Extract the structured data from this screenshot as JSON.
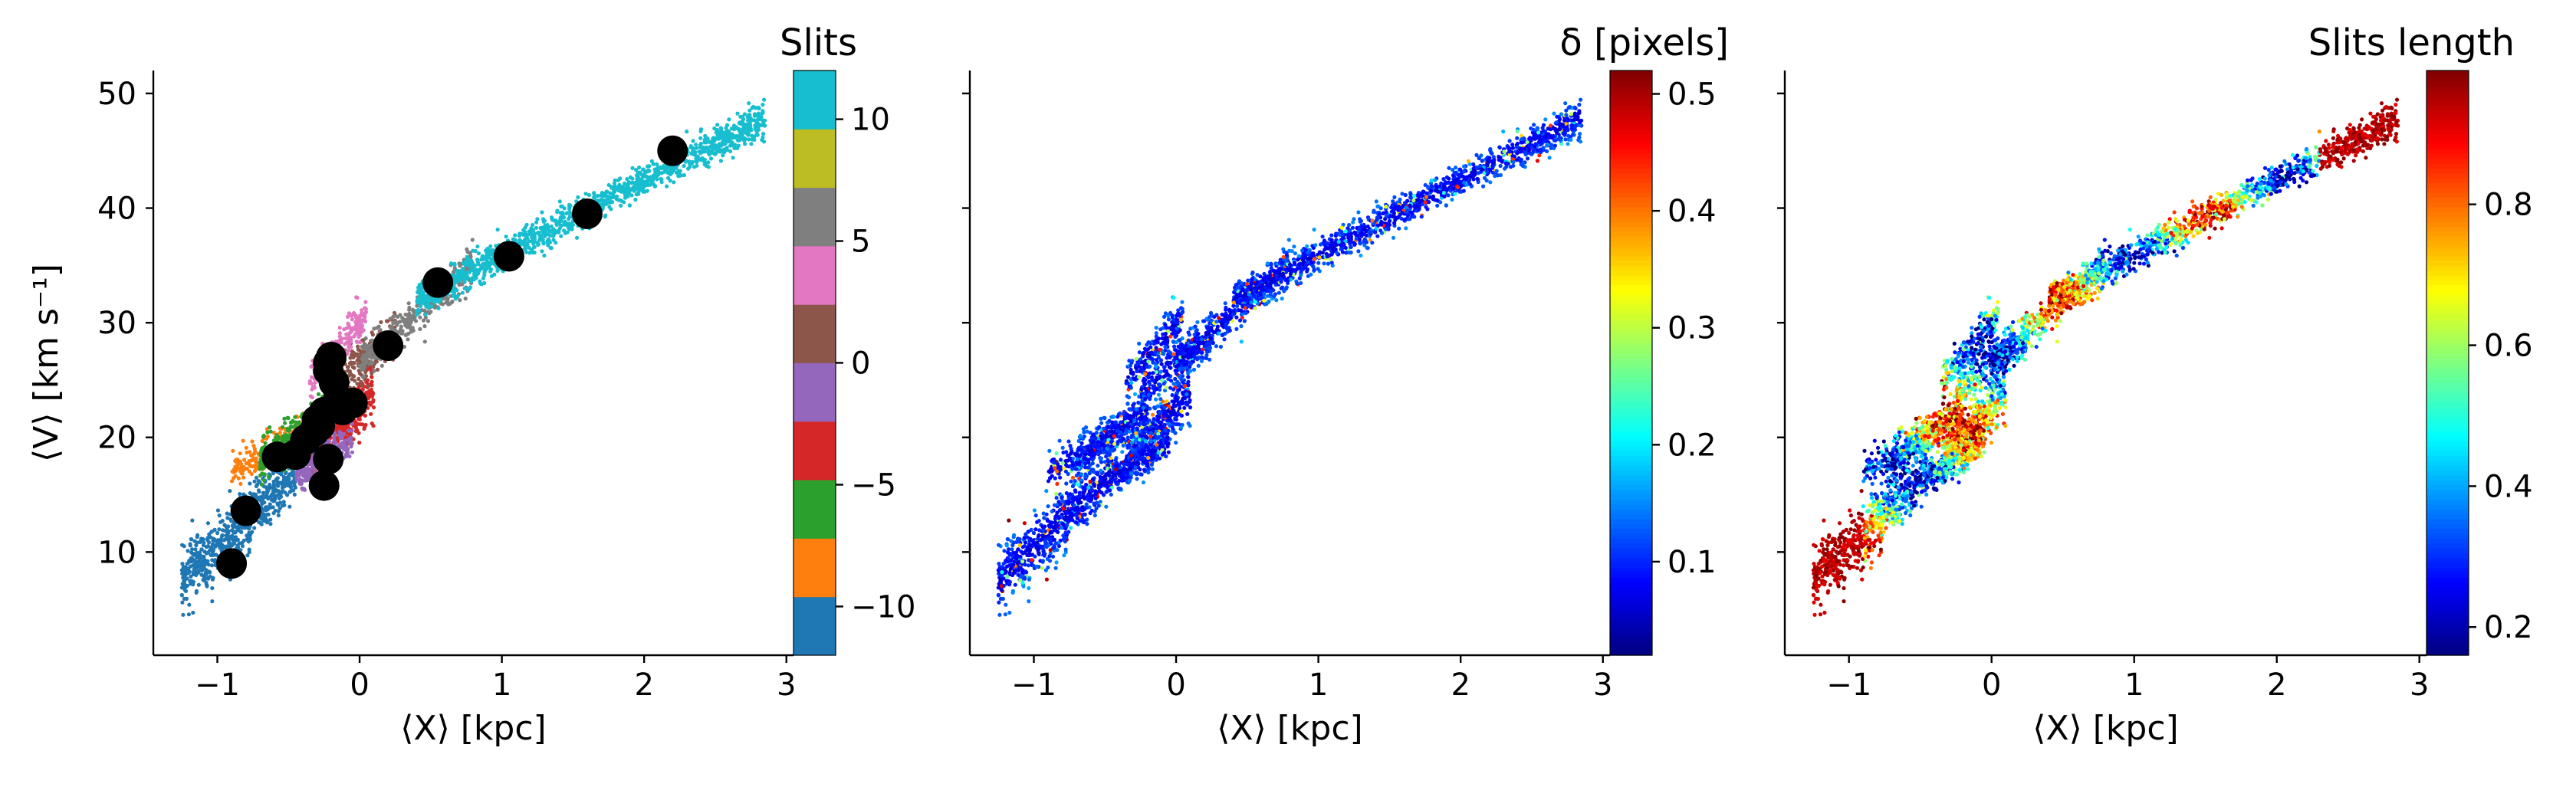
{
  "chart_data": [
    {
      "type": "scatter",
      "xlabel": "⟨X⟩ [kpc]",
      "ylabel": "⟨V⟩ [km s⁻¹]",
      "xlim": [
        -1.45,
        3.05
      ],
      "ylim": [
        1,
        52
      ],
      "xticks": [
        -1,
        0,
        1,
        2,
        3
      ],
      "xtick_labels": [
        "−1",
        "0",
        "1",
        "2",
        "3"
      ],
      "yticks": [
        10,
        20,
        30,
        40,
        50
      ],
      "ytick_labels": [
        "10",
        "20",
        "30",
        "40",
        "50"
      ],
      "colorbar": {
        "title": "Slits",
        "type": "discrete",
        "range": [
          -12,
          12
        ],
        "ticks": [
          -10,
          -5,
          0,
          5,
          10
        ],
        "tick_labels": [
          "−10",
          "−5",
          "0",
          "5",
          "10"
        ],
        "colors": [
          "#1f77b4",
          "#ff7f0e",
          "#2ca02c",
          "#d62728",
          "#9467bd",
          "#8c564b",
          "#e377c2",
          "#7f7f7f",
          "#bcbd22",
          "#17becf"
        ]
      },
      "scatter_colored_by": "slit",
      "series": [
        {
          "marker": "large-black-circle",
          "color": "#000000",
          "x": [
            -0.9,
            -0.8,
            -0.58,
            -0.45,
            -0.38,
            -0.32,
            -0.28,
            -0.25,
            -0.22,
            -0.2,
            -0.18,
            -0.15,
            -0.12,
            -0.25,
            -0.22,
            -0.05,
            0.2,
            0.55,
            1.05,
            1.6,
            2.2,
            -0.22,
            -0.3
          ],
          "y": [
            9.0,
            13.6,
            18.3,
            18.5,
            19.8,
            20.5,
            21.0,
            22.2,
            25.8,
            27.0,
            24.8,
            23.3,
            22.4,
            15.8,
            18.1,
            23.0,
            28.0,
            33.5,
            35.8,
            39.5,
            45.0,
            26.5,
            21.5
          ]
        }
      ]
    },
    {
      "type": "scatter",
      "xlabel": "⟨X⟩ [kpc]",
      "xlim": [
        -1.45,
        3.05
      ],
      "ylim": [
        1,
        52
      ],
      "xticks": [
        -1,
        0,
        1,
        2,
        3
      ],
      "xtick_labels": [
        "−1",
        "0",
        "1",
        "2",
        "3"
      ],
      "yticks": [
        10,
        20,
        30,
        40,
        50
      ],
      "colorbar": {
        "title": "δ [pixels]",
        "type": "continuous",
        "colormap": "jet",
        "range": [
          0.02,
          0.52
        ],
        "ticks": [
          0.1,
          0.2,
          0.3,
          0.4,
          0.5
        ],
        "tick_labels": [
          "0.1",
          "0.2",
          "0.3",
          "0.4",
          "0.5"
        ]
      },
      "scatter_colored_by": "delta"
    },
    {
      "type": "scatter",
      "xlabel": "⟨X⟩ [kpc]",
      "xlim": [
        -1.45,
        3.05
      ],
      "ylim": [
        1,
        52
      ],
      "xticks": [
        -1,
        0,
        1,
        2,
        3
      ],
      "xtick_labels": [
        "−1",
        "0",
        "1",
        "2",
        "3"
      ],
      "yticks": [
        10,
        20,
        30,
        40,
        50
      ],
      "colorbar": {
        "title": "Slits length",
        "type": "continuous",
        "colormap": "jet",
        "range": [
          0.16,
          0.99
        ],
        "ticks": [
          0.2,
          0.4,
          0.6,
          0.8
        ],
        "tick_labels": [
          "0.2",
          "0.4",
          "0.6",
          "0.8"
        ]
      },
      "scatter_colored_by": "slit_length"
    }
  ],
  "scatter_clouds": [
    {
      "x_range": [
        -1.25,
        -0.45
      ],
      "y_at_x": [
        -1.25,
        7.5,
        -0.45,
        17.0
      ],
      "spread": 2.4,
      "n": 700,
      "slit": -10
    },
    {
      "x_range": [
        -0.9,
        -0.35
      ],
      "y_at_x": [
        -0.9,
        17.0,
        -0.35,
        21.0
      ],
      "spread": 1.4,
      "n": 220,
      "slit": -9
    },
    {
      "x_range": [
        -0.7,
        -0.2
      ],
      "y_at_x": [
        -0.7,
        18.0,
        -0.2,
        22.5
      ],
      "spread": 1.6,
      "n": 320,
      "slit": -6
    },
    {
      "x_range": [
        -0.35,
        0.1
      ],
      "y_at_x": [
        -0.35,
        18.0,
        0.1,
        24.0
      ],
      "spread": 2.2,
      "n": 380,
      "slit": -3
    },
    {
      "x_range": [
        -0.45,
        -0.05
      ],
      "y_at_x": [
        -0.45,
        16.5,
        -0.05,
        19.5
      ],
      "spread": 1.4,
      "n": 260,
      "slit": -1
    },
    {
      "x_range": [
        -0.25,
        0.25
      ],
      "y_at_x": [
        -0.25,
        24.0,
        0.25,
        29.0
      ],
      "spread": 1.8,
      "n": 280,
      "slit": 1
    },
    {
      "x_range": [
        -0.35,
        0.05
      ],
      "y_at_x": [
        -0.35,
        25.0,
        0.05,
        30.5
      ],
      "spread": 1.5,
      "n": 200,
      "slit": 3
    },
    {
      "x_range": [
        0.0,
        0.8
      ],
      "y_at_x": [
        0.0,
        26.5,
        0.8,
        35.0
      ],
      "spread": 1.6,
      "n": 360,
      "slit": 7
    },
    {
      "x_range": [
        0.4,
        2.85
      ],
      "y_at_x": [
        0.4,
        32.0,
        2.85,
        48.0
      ],
      "spread": 1.3,
      "n": 1300,
      "slit": 11
    }
  ]
}
